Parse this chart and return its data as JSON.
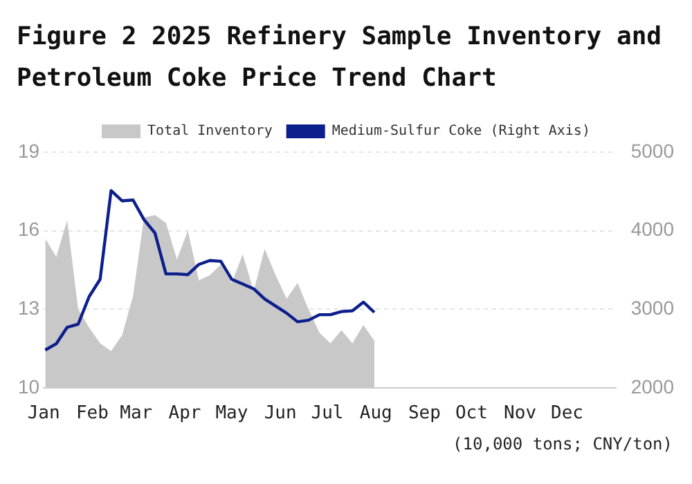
{
  "chart_data": {
    "type": "area",
    "title": "Figure 2 2025 Refinery Sample Inventory and Petroleum Coke Price Trend Chart",
    "x": [
      "2025-01-02",
      "2025-01-09",
      "2025-01-16",
      "2025-01-23",
      "2025-01-30",
      "2025-02-06",
      "2025-02-13",
      "2025-02-20",
      "2025-02-27",
      "2025-03-06",
      "2025-03-13",
      "2025-03-20",
      "2025-03-27",
      "2025-04-03",
      "2025-04-10",
      "2025-04-17",
      "2025-04-24",
      "2025-05-01",
      "2025-05-08",
      "2025-05-15",
      "2025-05-22",
      "2025-05-29",
      "2025-06-05",
      "2025-06-12",
      "2025-06-19",
      "2025-06-26",
      "2025-07-03",
      "2025-07-10",
      "2025-07-17",
      "2025-07-24",
      "2025-07-31"
    ],
    "series": [
      {
        "name": "Total Inventory",
        "color": "#c8c8c8",
        "values": [
          15.7,
          15.0,
          16.4,
          13.0,
          12.3,
          11.7,
          11.4,
          12.0,
          13.5,
          16.5,
          16.6,
          16.3,
          14.9,
          16.0,
          14.1,
          14.3,
          14.7,
          14.0,
          15.1,
          13.7,
          15.3,
          14.3,
          13.4,
          14.0,
          13.0,
          12.1,
          11.7,
          12.2,
          11.7,
          12.4,
          11.8
        ]
      },
      {
        "name": "Medium-Sulfur Coke (Right Axis)",
        "type": "line",
        "axis": "y2",
        "color": "#0d1f8c",
        "values": [
          2480,
          2560,
          2770,
          2810,
          3160,
          3380,
          4510,
          4380,
          4390,
          4140,
          3970,
          3450,
          3450,
          3440,
          3570,
          3620,
          3610,
          3380,
          3320,
          3260,
          3130,
          3040,
          2950,
          2840,
          2860,
          2930,
          2930,
          2970,
          2980,
          3090,
          2960
        ]
      }
    ],
    "xlim": [
      "2025-01-01",
      "2026-01-01"
    ],
    "xticks": [
      {
        "value": "2025-01-01",
        "label": "Jan"
      },
      {
        "value": "2025-02-01",
        "label": "Feb"
      },
      {
        "value": "2025-03-01",
        "label": "Mar"
      },
      {
        "value": "2025-04-01",
        "label": "Apr"
      },
      {
        "value": "2025-05-01",
        "label": "May"
      },
      {
        "value": "2025-06-01",
        "label": "Jun"
      },
      {
        "value": "2025-07-01",
        "label": "Jul"
      },
      {
        "value": "2025-08-01",
        "label": "Aug"
      },
      {
        "value": "2025-09-01",
        "label": "Sep"
      },
      {
        "value": "2025-10-01",
        "label": "Oct"
      },
      {
        "value": "2025-11-01",
        "label": "Nov"
      },
      {
        "value": "2025-12-01",
        "label": "Dec"
      }
    ],
    "ylim": [
      10,
      19
    ],
    "yticks": [
      10,
      13,
      16,
      19
    ],
    "y2lim": [
      2000,
      5000
    ],
    "y2ticks": [
      2000,
      3000,
      4000,
      5000
    ],
    "grid": "y",
    "legend": "top",
    "marker": "none",
    "line_style": "solid",
    "annotations": [
      "(10,000 tons; CNY/ton)"
    ]
  }
}
